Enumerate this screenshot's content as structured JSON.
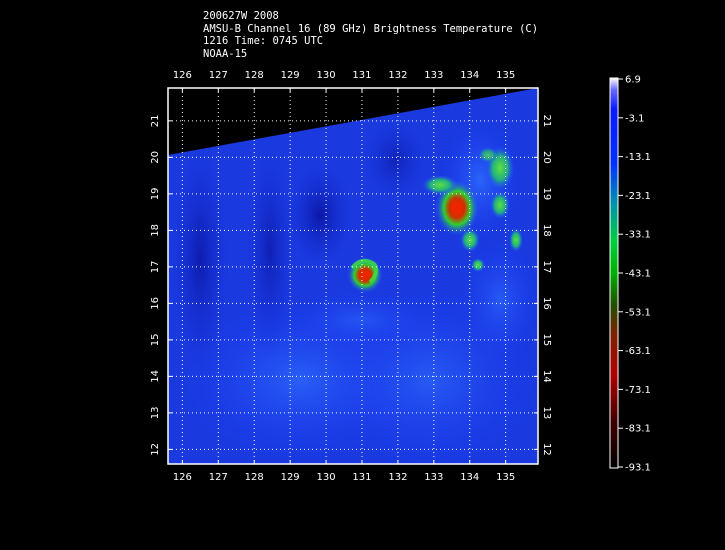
{
  "header": {
    "line1": "200627W 2008",
    "line2": "AMSU-B Channel 16 (89 GHz) Brightness Temperature (C)",
    "line3": "1216 Time: 0745 UTC",
    "line4": "NOAA-15"
  },
  "map": {
    "lon_ticks": [
      "126",
      "127",
      "128",
      "129",
      "130",
      "131",
      "132",
      "133",
      "134",
      "135"
    ],
    "lat_ticks": [
      "21",
      "20",
      "19",
      "18",
      "17",
      "16",
      "15",
      "14",
      "13",
      "12"
    ],
    "lon_range": [
      125.6,
      135.9
    ],
    "lat_range": [
      11.6,
      21.9
    ],
    "grid": true,
    "features": [
      {
        "name": "storm-center",
        "lon": 130.9,
        "lat": 16.5
      },
      {
        "name": "convective-band-northeast",
        "lon": 133.5,
        "lat": 18.3
      }
    ]
  },
  "colorbar": {
    "labels": [
      "6.9",
      "-3.1",
      "-13.1",
      "-23.1",
      "-33.1",
      "-43.1",
      "-53.1",
      "-63.1",
      "-73.1",
      "-83.1",
      "-93.1"
    ],
    "colors": [
      "#ffffff",
      "#0030ff",
      "#0090b0",
      "#00d040",
      "#00a000",
      "#602000",
      "#b00000",
      "#000000"
    ]
  }
}
